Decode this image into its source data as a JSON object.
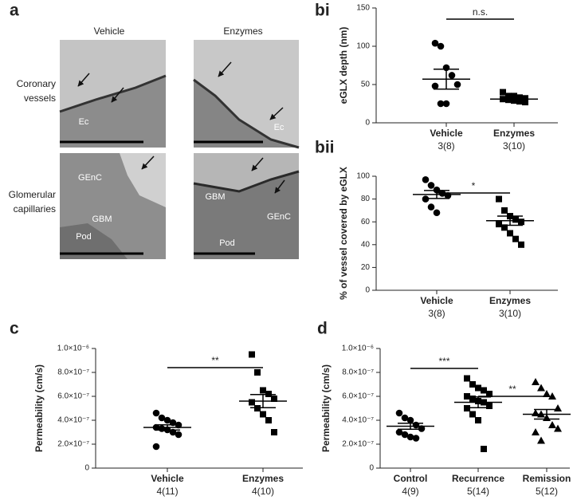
{
  "panel_a": {
    "label": "a",
    "columns": [
      "Vehicle",
      "Enzymes"
    ],
    "rows": [
      [
        "Coronary",
        "vessels"
      ],
      [
        "Glomerular",
        "capillaries"
      ]
    ],
    "images": [
      {
        "labels": [
          "Ec"
        ]
      },
      {
        "labels": [
          "Ec"
        ]
      },
      {
        "labels": [
          "GEnC",
          "GBM",
          "Pod"
        ]
      },
      {
        "labels": [
          "GBM",
          "GEnC",
          "Pod"
        ]
      }
    ]
  },
  "chart_data": [
    {
      "type": "dot",
      "panel": "bi",
      "y_label": "eGLX depth (nm)",
      "color": "#000000",
      "categories": [
        "Vehicle",
        "Enzymes"
      ],
      "group_labels": [
        "3(8)",
        "3(10)"
      ],
      "markers": [
        "circle",
        "square"
      ],
      "values": [
        [
          104,
          100,
          72,
          62,
          50,
          48,
          25,
          25
        ],
        [
          40,
          35,
          35,
          33,
          32,
          31,
          30,
          29,
          28,
          27
        ]
      ],
      "mean": [
        57,
        31
      ],
      "sem": [
        13,
        1.5
      ],
      "ylim": [
        0,
        150
      ],
      "yticks": [
        0,
        50,
        100,
        150
      ],
      "annotations": [
        "n.s."
      ]
    },
    {
      "type": "dot",
      "panel": "bii",
      "y_label": "% of vessel covered by eGLX",
      "color": "#000000",
      "categories": [
        "Vehicle",
        "Enzymes"
      ],
      "group_labels": [
        "3(8)",
        "3(10)"
      ],
      "markers": [
        "circle",
        "square"
      ],
      "values": [
        [
          97,
          92,
          88,
          85,
          83,
          80,
          73,
          68
        ],
        [
          80,
          70,
          65,
          62,
          60,
          58,
          55,
          50,
          45,
          40
        ]
      ],
      "mean": [
        84,
        61
      ],
      "sem": [
        3.5,
        4
      ],
      "ylim": [
        0,
        100
      ],
      "yticks": [
        0,
        20,
        40,
        60,
        80,
        100
      ],
      "annotations": [
        "*"
      ]
    },
    {
      "type": "dot",
      "panel": "c",
      "y_label": "Permeability (cm/s)",
      "color": "#000000",
      "categories": [
        "Vehicle",
        "Enzymes"
      ],
      "group_labels": [
        "4(11)",
        "4(10)"
      ],
      "markers": [
        "circle",
        "square"
      ],
      "values": [
        [
          4.6e-07,
          4.2e-07,
          4e-07,
          3.8e-07,
          3.6e-07,
          3.4e-07,
          3.3e-07,
          3.2e-07,
          3e-07,
          2.8e-07,
          1.8e-07
        ],
        [
          9.5e-07,
          8e-07,
          6.5e-07,
          6.2e-07,
          5.8e-07,
          5.5e-07,
          5e-07,
          4.5e-07,
          4e-07,
          3e-07
        ]
      ],
      "mean": [
        3.4e-07,
        5.6e-07
      ],
      "sem": [
        2.2e-08,
        5.5e-08
      ],
      "ylim": [
        0,
        1e-06
      ],
      "yticks": [
        0,
        {
          "value": 2e-07,
          "label": "2.0×10⁻⁷"
        },
        {
          "value": 4e-07,
          "label": "4.0×10⁻⁷"
        },
        {
          "value": 6e-07,
          "label": "6.0×10⁻⁷"
        },
        {
          "value": 8e-07,
          "label": "8.0×10⁻⁷"
        },
        {
          "value": 1e-06,
          "label": "1.0×10⁻⁶"
        }
      ],
      "annotations": [
        "**"
      ]
    },
    {
      "type": "dot",
      "panel": "d",
      "y_label": "Permeability (cm/s)",
      "color": "#000000",
      "categories": [
        "Control",
        "Recurrence",
        "Remission"
      ],
      "group_labels": [
        "4(9)",
        "5(14)",
        "5(12)"
      ],
      "markers": [
        "circle",
        "square",
        "triangle"
      ],
      "values": [
        [
          4.6e-07,
          4.2e-07,
          4e-07,
          3.6e-07,
          3.3e-07,
          3e-07,
          2.8e-07,
          2.6e-07,
          2.5e-07
        ],
        [
          7.5e-07,
          7e-07,
          6.7e-07,
          6.5e-07,
          6.2e-07,
          6e-07,
          5.8e-07,
          5.6e-07,
          5.5e-07,
          5.2e-07,
          5e-07,
          4.5e-07,
          4e-07,
          1.6e-07
        ],
        [
          7.2e-07,
          6.7e-07,
          6.2e-07,
          6e-07,
          5e-07,
          4.6e-07,
          4.5e-07,
          4.2e-07,
          3.6e-07,
          3.3e-07,
          3e-07,
          2.3e-07
        ]
      ],
      "mean": [
        3.5e-07,
        5.5e-07,
        4.5e-07
      ],
      "sem": [
        2.5e-08,
        4.5e-08,
        4e-08
      ],
      "ylim": [
        0,
        1e-06
      ],
      "yticks": [
        0,
        {
          "value": 2e-07,
          "label": "2.0×10⁻⁷"
        },
        {
          "value": 4e-07,
          "label": "4.0×10⁻⁷"
        },
        {
          "value": 6e-07,
          "label": "6.0×10⁻⁷"
        },
        {
          "value": 8e-07,
          "label": "8.0×10⁻⁷"
        },
        {
          "value": 1e-06,
          "label": "1.0×10⁻⁶"
        }
      ],
      "annotations": [
        "***",
        "**"
      ]
    }
  ]
}
